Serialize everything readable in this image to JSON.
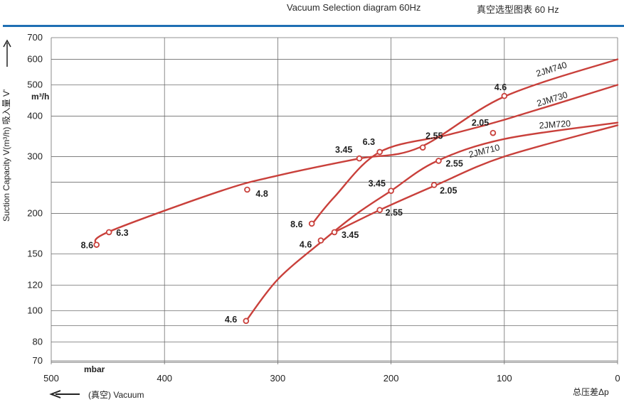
{
  "header": {
    "title_en": "Vacuum Selection diagram 60Hz",
    "title_cn": "真空选型图表 60 Hz"
  },
  "colors": {
    "accent_rule": "#1f6fb3",
    "curve": "#c9403b",
    "grid": "#6e6e6e"
  },
  "chart_data": {
    "type": "line",
    "x_axis": {
      "range": [
        500,
        0
      ],
      "ticks": [
        500,
        400,
        300,
        200,
        100,
        0
      ],
      "unit_label": "mbar",
      "direction_label": "(真空) Vacuum",
      "right_label": "总压差Δp"
    },
    "y_axis": {
      "scale": "log",
      "range": [
        70,
        700
      ],
      "ticks": [
        70,
        80,
        100,
        120,
        150,
        200,
        300,
        400,
        500,
        600,
        700
      ],
      "label": "Suction Capacity V(m³/h)  吸入量 V'",
      "unit_label": "m³/h"
    },
    "series": [
      {
        "name": "2JM740",
        "points": [
          [
            460,
            160
          ],
          [
            450,
            175
          ],
          [
            350,
            235
          ],
          [
            300,
            262
          ],
          [
            230,
            295
          ],
          [
            175,
            320
          ],
          [
            100,
            460
          ],
          [
            0,
            600
          ]
        ],
        "markers": [
          [
            460,
            160,
            "8.6"
          ],
          [
            449,
            175,
            "6.3"
          ],
          [
            327,
            237,
            "4.8"
          ],
          [
            228,
            296,
            "3.45"
          ],
          [
            172,
            320,
            "2.55"
          ],
          [
            100,
            462,
            "4.6"
          ]
        ]
      },
      {
        "name": "2JM730",
        "points": [
          [
            270,
            185
          ],
          [
            250,
            225
          ],
          [
            210,
            310
          ],
          [
            150,
            350
          ],
          [
            100,
            390
          ],
          [
            0,
            500
          ]
        ],
        "markers": [
          [
            270,
            186,
            "8.6"
          ],
          [
            210,
            310,
            "6.3"
          ],
          [
            110,
            355,
            "2.05"
          ]
        ]
      },
      {
        "name": "2JM720",
        "points": [
          [
            328,
            93
          ],
          [
            300,
            125
          ],
          [
            260,
            165
          ],
          [
            230,
            200
          ],
          [
            200,
            235
          ],
          [
            160,
            290
          ],
          [
            100,
            340
          ],
          [
            0,
            382
          ]
        ],
        "markers": [
          [
            328,
            93,
            "4.6"
          ],
          [
            262,
            165,
            "4.6"
          ],
          [
            200,
            235,
            "3.45"
          ],
          [
            158,
            291,
            "2.55"
          ]
        ]
      },
      {
        "name": "2JM710",
        "points": [
          [
            250,
            175
          ],
          [
            210,
            205
          ],
          [
            160,
            245
          ],
          [
            100,
            300
          ],
          [
            0,
            375
          ]
        ],
        "markers": [
          [
            250,
            175,
            "3.45"
          ],
          [
            210,
            205,
            "2.55"
          ],
          [
            162,
            245,
            "2.05"
          ]
        ]
      }
    ]
  }
}
